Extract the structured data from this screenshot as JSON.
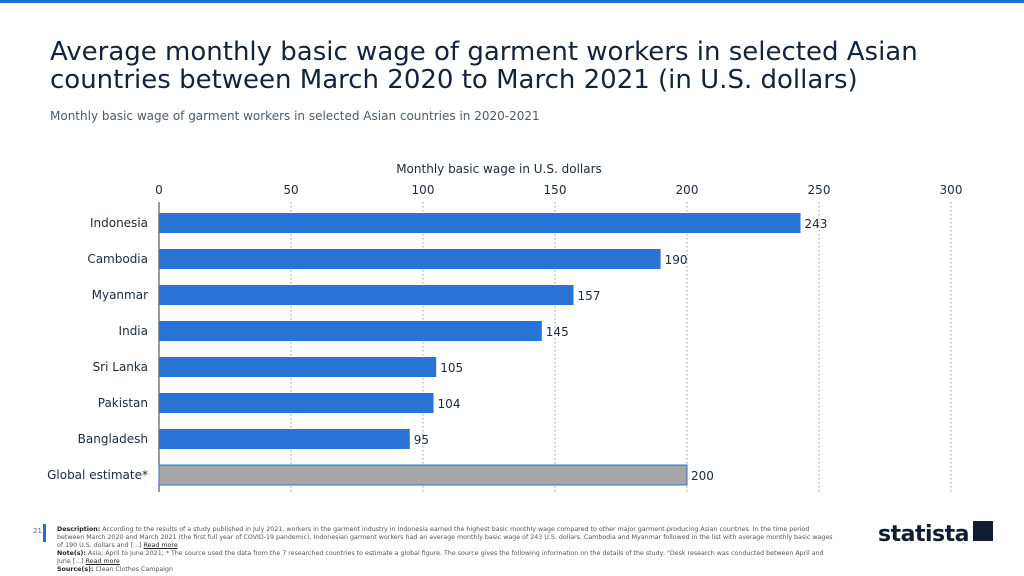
{
  "title": "Average monthly basic wage of garment workers in selected Asian countries between March 2020 to March 2021 (in U.S. dollars)",
  "subtitle": "Monthly basic wage of garment workers in selected Asian countries in 2020-2021",
  "chart_data": {
    "type": "bar",
    "orientation": "horizontal",
    "xlabel": "Monthly basic wage in U.S. dollars",
    "categories": [
      "Indonesia",
      "Cambodia",
      "Myanmar",
      "India",
      "Sri Lanka",
      "Pakistan",
      "Bangladesh",
      "Global estimate*"
    ],
    "values": [
      243,
      190,
      157,
      145,
      105,
      104,
      95,
      200
    ],
    "xlim": [
      0,
      300
    ],
    "ticks": [
      0,
      50,
      100,
      150,
      200,
      250,
      300
    ],
    "colors": {
      "bar": "#2a74d6",
      "highlight": "#a6a6a6"
    }
  },
  "footer": {
    "page": "21",
    "description_label": "Description:",
    "description": "According to the results of a study published in July 2021, workers in the garment industry in Indonesia earned the highest basic monthly wage compared to other major garment-producing Asian countries. In the time period between March 2020 and March 2021 (the first full year of COVID-19 pandemic), Indonesian garment workers had an average monthly basic wage of 243 U.S. dollars. Cambodia and Myanmar followed in the list with average monthly basic wages of 190 U.S. dollars and [...]",
    "notes_label": "Note(s):",
    "notes": "Asia; April to June 2021; * The source used the data from the 7 researched countries to estimate a global figure. The source gives the following information on the details of the study: \"Desk research was conducted between April and June [...]",
    "read_more": "Read more",
    "source_label": "Source(s):",
    "source": "Clean Clothes Campaign"
  },
  "logo": "statista"
}
